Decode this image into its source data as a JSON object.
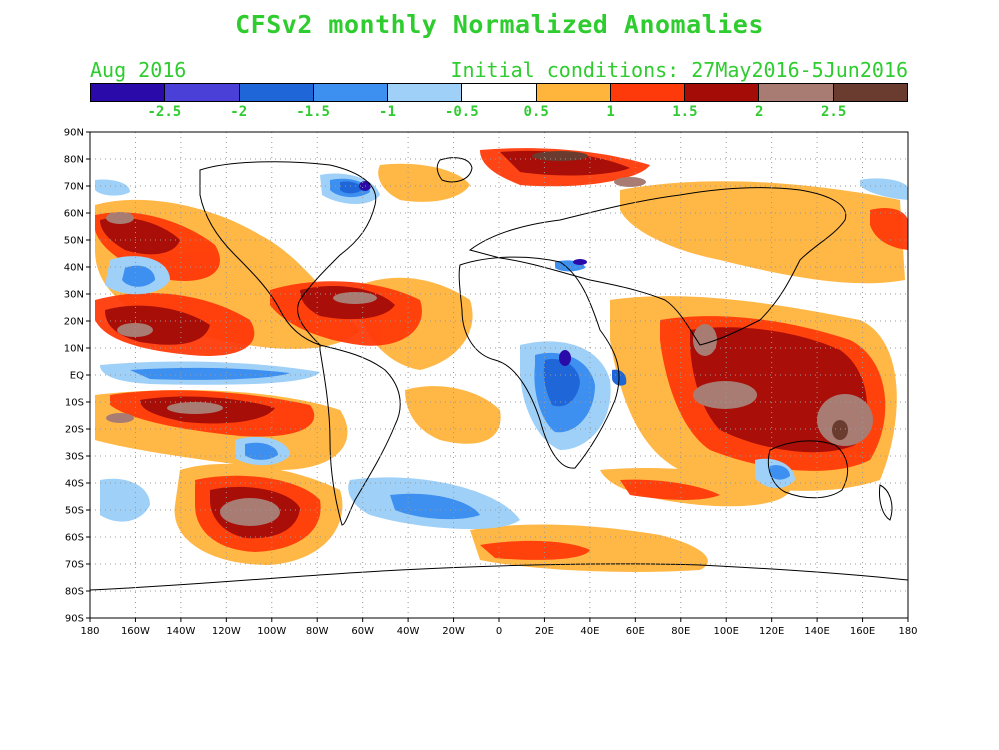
{
  "title": "CFSv2 monthly Normalized Anomalies",
  "month_label": "Aug 2016",
  "init_label": "Initial conditions: 27May2016-5Jun2016",
  "colorbar": {
    "colors": [
      "#2a0aa8",
      "#4a3fd6",
      "#1f66d8",
      "#3d8ff0",
      "#9fd0f8",
      "#ffffff",
      "#ffb43c",
      "#ff3a0a",
      "#a40c08",
      "#a87c72",
      "#6a3c30"
    ],
    "labels": [
      "-2.5",
      "-2",
      "-1.5",
      "-1",
      "-0.5",
      "0.5",
      "1",
      "1.5",
      "2",
      "2.5"
    ]
  },
  "lat_labels": [
    "90N",
    "80N",
    "70N",
    "60N",
    "50N",
    "40N",
    "30N",
    "20N",
    "10N",
    "EQ",
    "10S",
    "20S",
    "30S",
    "40S",
    "50S",
    "60S",
    "70S",
    "80S",
    "90S"
  ],
  "lon_labels": [
    "180",
    "160W",
    "140W",
    "120W",
    "100W",
    "80W",
    "60W",
    "40W",
    "20W",
    "0",
    "20E",
    "40E",
    "60E",
    "80E",
    "100E",
    "120E",
    "140E",
    "160E",
    "180"
  ]
}
